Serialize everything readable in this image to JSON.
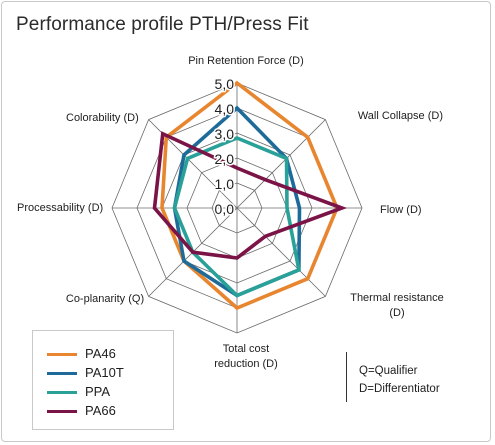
{
  "title": "Performance profile PTH/Press Fit",
  "chart_data": {
    "type": "radar",
    "title": "Performance profile PTH/Press Fit",
    "axes": [
      "Pin Retention Force (D)",
      "Wall Collapse (D)",
      "Flow (D)",
      "Thermal resistance (D)",
      "Total cost reduction (D)",
      "Co-planarity (Q)",
      "Processability (D)",
      "Colorability (D)"
    ],
    "axis_label_lines": [
      [
        "Pin Retention Force (D)"
      ],
      [
        "Wall Collapse (D)"
      ],
      [
        "Flow (D)"
      ],
      [
        "Thermal resistance",
        "(D)"
      ],
      [
        "Total cost",
        "reduction (D)"
      ],
      [
        "Co-planarity (Q)"
      ],
      [
        "Processability (D)"
      ],
      [
        "Colorability (D)"
      ]
    ],
    "tick_labels": [
      "0,0",
      "1,0",
      "2,0",
      "3,0",
      "4,0",
      "5,0"
    ],
    "range": [
      0,
      5
    ],
    "series": [
      {
        "name": "PA46",
        "color": "#e8862f",
        "values": [
          5.0,
          4.0,
          4.0,
          4.0,
          4.0,
          3.0,
          3.0,
          4.0
        ]
      },
      {
        "name": "PA10T",
        "color": "#1e6b99",
        "values": [
          4.0,
          2.8,
          2.5,
          3.5,
          3.5,
          3.0,
          2.5,
          3.0
        ]
      },
      {
        "name": "PPA",
        "color": "#2aa198",
        "values": [
          2.8,
          2.8,
          2.0,
          3.5,
          3.5,
          2.5,
          2.5,
          2.8
        ]
      },
      {
        "name": "PA66",
        "color": "#7b1446",
        "values": [
          1.6,
          1.6,
          4.2,
          1.6,
          2.0,
          2.5,
          3.3,
          4.2
        ]
      }
    ]
  },
  "legend": {
    "items": [
      "PA46",
      "PA10T",
      "PPA",
      "PA66"
    ]
  },
  "notes": {
    "qualifier": "Q=Qualifier",
    "differentiator": "D=Differentiator"
  }
}
